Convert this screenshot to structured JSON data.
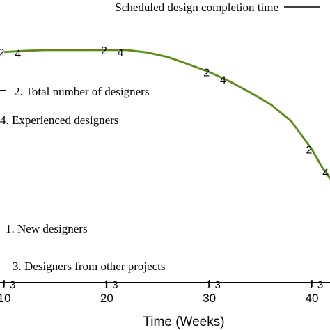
{
  "chart_data": {
    "type": "line",
    "xlabel": "Time (Weeks)",
    "xlim": [
      10,
      43
    ],
    "xticks": [
      10,
      20,
      30,
      40
    ],
    "ylim": [
      0,
      10
    ],
    "grid": false,
    "series": [
      {
        "name": "Scheduled design completion time",
        "legend_only": true,
        "color": "#000000"
      },
      {
        "name": "2. Total number of designers",
        "marker": "2",
        "color": "#7a7a1a",
        "x": [
          10,
          12,
          14,
          16,
          18,
          20,
          22,
          24,
          26,
          28,
          30,
          32,
          34,
          36,
          38,
          40,
          41,
          42,
          43
        ],
        "y": [
          9.0,
          9.05,
          9.08,
          9.08,
          9.08,
          9.08,
          9.08,
          8.98,
          8.8,
          8.52,
          8.22,
          7.85,
          7.42,
          6.95,
          6.3,
          5.2,
          4.5,
          3.95,
          3.75
        ]
      },
      {
        "name": "4. Experienced designers",
        "marker": "4",
        "color": "#2fbf2f",
        "x": [
          10,
          12,
          14,
          16,
          18,
          20,
          22,
          24,
          26,
          28,
          30,
          32,
          34,
          36,
          38,
          40,
          41,
          42,
          43
        ],
        "y": [
          9.0,
          9.05,
          9.08,
          9.08,
          9.08,
          9.08,
          9.08,
          8.98,
          8.8,
          8.52,
          8.22,
          7.85,
          7.42,
          6.95,
          6.3,
          5.2,
          4.5,
          3.95,
          3.75
        ]
      },
      {
        "name": "1. New designers",
        "marker": "1",
        "color": "#000000",
        "x": [
          10,
          20,
          30,
          40,
          43
        ],
        "y": [
          0,
          0,
          0,
          0,
          0
        ]
      },
      {
        "name": "3. Designers from other projects",
        "marker": "3",
        "color": "#000000",
        "x": [
          10,
          20,
          30,
          40,
          43
        ],
        "y": [
          0,
          0,
          0,
          0,
          0
        ]
      }
    ],
    "marker_x": [
      10,
      20,
      30,
      40
    ]
  }
}
